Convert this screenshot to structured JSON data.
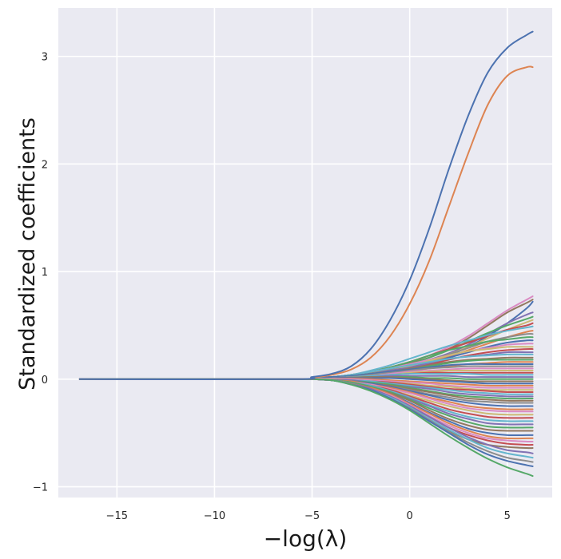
{
  "chart_data": {
    "type": "line",
    "title": "",
    "xlabel": "−log(λ)",
    "ylabel": "Standardized coefficients",
    "xlim": [
      -18,
      7.3
    ],
    "ylim": [
      -1.1,
      3.45
    ],
    "xticks": [
      -15,
      -10,
      -5,
      0,
      5
    ],
    "xtick_labels": [
      "−15",
      "−10",
      "−5",
      "0",
      "5"
    ],
    "yticks": [
      -1,
      0,
      1,
      2,
      3
    ],
    "ytick_labels": [
      "−1",
      "0",
      "1",
      "2",
      "3"
    ],
    "grid": true,
    "background": "#eaeaf2",
    "legend": "none",
    "x_range": [
      -16.9,
      6.3
    ],
    "n_series": 60,
    "x_samples": [
      -16.9,
      -6,
      -5,
      -4,
      -3,
      -2,
      -1,
      0,
      1,
      2,
      3,
      4,
      5,
      6,
      6.3
    ],
    "series": [
      {
        "color": "#4c72b0",
        "values": [
          0,
          0,
          0.02,
          0.05,
          0.12,
          0.28,
          0.55,
          0.92,
          1.4,
          1.95,
          2.45,
          2.85,
          3.08,
          3.2,
          3.23
        ]
      },
      {
        "color": "#dd8452",
        "values": [
          0,
          0,
          0.015,
          0.04,
          0.09,
          0.2,
          0.4,
          0.7,
          1.1,
          1.6,
          2.1,
          2.55,
          2.82,
          2.9,
          2.9
        ]
      },
      {
        "color": "#da8bc3",
        "values": [
          0,
          0,
          0.01,
          0.02,
          0.04,
          0.07,
          0.11,
          0.16,
          0.22,
          0.3,
          0.4,
          0.52,
          0.64,
          0.74,
          0.77
        ]
      },
      {
        "color": "#937860",
        "values": [
          0,
          0,
          0.01,
          0.02,
          0.04,
          0.07,
          0.1,
          0.15,
          0.2,
          0.28,
          0.38,
          0.5,
          0.62,
          0.71,
          0.74
        ]
      },
      {
        "color": "#4c72b0",
        "values": [
          0,
          0,
          0.01,
          0.02,
          0.03,
          0.05,
          0.08,
          0.11,
          0.16,
          0.22,
          0.3,
          0.4,
          0.52,
          0.66,
          0.72
        ]
      },
      {
        "color": "#8172b3",
        "values": [
          0,
          0,
          0.01,
          0.02,
          0.03,
          0.06,
          0.09,
          0.13,
          0.18,
          0.24,
          0.32,
          0.42,
          0.52,
          0.6,
          0.62
        ]
      },
      {
        "color": "#55a868",
        "values": [
          0,
          0,
          0.01,
          0.02,
          0.04,
          0.06,
          0.1,
          0.14,
          0.2,
          0.27,
          0.35,
          0.43,
          0.5,
          0.56,
          0.58
        ]
      },
      {
        "color": "#ccb974",
        "values": [
          0,
          0,
          0.01,
          0.015,
          0.03,
          0.05,
          0.08,
          0.12,
          0.17,
          0.23,
          0.3,
          0.38,
          0.46,
          0.53,
          0.55
        ]
      },
      {
        "color": "#c44e52",
        "values": [
          0,
          0,
          0.01,
          0.02,
          0.04,
          0.07,
          0.11,
          0.16,
          0.22,
          0.28,
          0.34,
          0.4,
          0.46,
          0.5,
          0.52
        ]
      },
      {
        "color": "#64b5cd",
        "values": [
          0,
          0,
          0.01,
          0.02,
          0.04,
          0.08,
          0.13,
          0.19,
          0.25,
          0.31,
          0.36,
          0.41,
          0.45,
          0.48,
          0.49
        ]
      },
      {
        "color": "#dd8452",
        "values": [
          0,
          0,
          0.01,
          0.015,
          0.03,
          0.05,
          0.08,
          0.12,
          0.16,
          0.21,
          0.27,
          0.33,
          0.39,
          0.44,
          0.45
        ]
      },
      {
        "color": "#8c8c8c",
        "values": [
          0,
          0,
          0.01,
          0.02,
          0.03,
          0.06,
          0.09,
          0.13,
          0.18,
          0.23,
          0.29,
          0.35,
          0.39,
          0.42,
          0.42
        ]
      },
      {
        "color": "#55a868",
        "values": [
          0,
          0,
          0.01,
          0.02,
          0.04,
          0.07,
          0.11,
          0.16,
          0.22,
          0.27,
          0.31,
          0.35,
          0.37,
          0.39,
          0.39
        ]
      },
      {
        "color": "#4c72b0",
        "values": [
          0,
          0,
          0.01,
          0.015,
          0.03,
          0.05,
          0.08,
          0.11,
          0.15,
          0.2,
          0.25,
          0.3,
          0.34,
          0.36,
          0.36
        ]
      },
      {
        "color": "#da8bc3",
        "values": [
          0,
          0,
          0.01,
          0.02,
          0.04,
          0.07,
          0.1,
          0.14,
          0.18,
          0.22,
          0.26,
          0.29,
          0.32,
          0.33,
          0.33
        ]
      },
      {
        "color": "#ccb974",
        "values": [
          0,
          0,
          0.01,
          0.02,
          0.03,
          0.05,
          0.08,
          0.12,
          0.17,
          0.22,
          0.26,
          0.28,
          0.3,
          0.3,
          0.3
        ]
      },
      {
        "color": "#c44e52",
        "values": [
          0,
          0,
          0.01,
          0.015,
          0.03,
          0.05,
          0.07,
          0.1,
          0.14,
          0.18,
          0.22,
          0.25,
          0.27,
          0.28,
          0.28
        ]
      },
      {
        "color": "#8172b3",
        "values": [
          0,
          0,
          0.01,
          0.02,
          0.03,
          0.05,
          0.08,
          0.11,
          0.15,
          0.19,
          0.21,
          0.23,
          0.25,
          0.25,
          0.25
        ]
      },
      {
        "color": "#64b5cd",
        "values": [
          0,
          0,
          0.01,
          0.02,
          0.04,
          0.07,
          0.1,
          0.13,
          0.16,
          0.19,
          0.21,
          0.22,
          0.23,
          0.23,
          0.23
        ]
      },
      {
        "color": "#937860",
        "values": [
          0,
          0,
          0.01,
          0.015,
          0.03,
          0.05,
          0.07,
          0.1,
          0.13,
          0.16,
          0.18,
          0.19,
          0.2,
          0.2,
          0.2
        ]
      },
      {
        "color": "#55a868",
        "values": [
          0,
          0,
          0.01,
          0.02,
          0.03,
          0.05,
          0.07,
          0.09,
          0.12,
          0.15,
          0.17,
          0.18,
          0.18,
          0.18,
          0.18
        ]
      },
      {
        "color": "#dd8452",
        "values": [
          0,
          0,
          0.01,
          0.015,
          0.025,
          0.04,
          0.06,
          0.08,
          0.1,
          0.12,
          0.14,
          0.15,
          0.16,
          0.16,
          0.16
        ]
      },
      {
        "color": "#4c72b0",
        "values": [
          0,
          0,
          0.01,
          0.02,
          0.03,
          0.05,
          0.07,
          0.09,
          0.11,
          0.13,
          0.14,
          0.14,
          0.14,
          0.14,
          0.14
        ]
      },
      {
        "color": "#8c8c8c",
        "values": [
          0,
          0,
          0.005,
          0.01,
          0.02,
          0.04,
          0.06,
          0.08,
          0.1,
          0.11,
          0.12,
          0.12,
          0.12,
          0.12,
          0.12
        ]
      },
      {
        "color": "#da8bc3",
        "values": [
          0,
          0,
          0.005,
          0.01,
          0.02,
          0.03,
          0.05,
          0.07,
          0.08,
          0.09,
          0.1,
          0.1,
          0.1,
          0.1,
          0.1
        ]
      },
      {
        "color": "#ccb974",
        "values": [
          0,
          0,
          0.005,
          0.01,
          0.02,
          0.03,
          0.04,
          0.06,
          0.07,
          0.08,
          0.08,
          0.08,
          0.08,
          0.08,
          0.08
        ]
      },
      {
        "color": "#c44e52",
        "values": [
          0,
          0,
          0.005,
          0.01,
          0.02,
          0.03,
          0.04,
          0.05,
          0.06,
          0.06,
          0.06,
          0.06,
          0.06,
          0.06,
          0.06
        ]
      },
      {
        "color": "#64b5cd",
        "values": [
          0,
          0,
          0.005,
          0.01,
          0.02,
          0.03,
          0.04,
          0.05,
          0.05,
          0.05,
          0.05,
          0.04,
          0.04,
          0.04,
          0.04
        ]
      },
      {
        "color": "#8172b3",
        "values": [
          0,
          0,
          0.005,
          0.01,
          0.015,
          0.02,
          0.03,
          0.03,
          0.03,
          0.03,
          0.02,
          0.02,
          0.02,
          0.02,
          0.02
        ]
      },
      {
        "color": "#55a868",
        "values": [
          0,
          0,
          0.005,
          0.01,
          0.015,
          0.02,
          0.02,
          0.02,
          0.01,
          0.01,
          0.0,
          0.0,
          0.0,
          0.0,
          0.0
        ]
      },
      {
        "color": "#937860",
        "values": [
          0,
          0,
          0.005,
          0.01,
          0.015,
          0.02,
          0.02,
          0.01,
          0.0,
          -0.01,
          -0.02,
          -0.02,
          -0.02,
          -0.02,
          -0.02
        ]
      },
      {
        "color": "#4c72b0",
        "values": [
          0,
          0,
          0.005,
          0.01,
          0.01,
          0.01,
          0.01,
          0.0,
          -0.01,
          -0.02,
          -0.03,
          -0.04,
          -0.04,
          -0.04,
          -0.04
        ]
      },
      {
        "color": "#dd8452",
        "values": [
          0,
          0,
          0.005,
          0.005,
          0.005,
          0.0,
          -0.01,
          -0.02,
          -0.03,
          -0.04,
          -0.05,
          -0.06,
          -0.06,
          -0.06,
          -0.06
        ]
      },
      {
        "color": "#da8bc3",
        "values": [
          0,
          0,
          0.005,
          0.005,
          0.0,
          -0.01,
          -0.02,
          -0.03,
          -0.04,
          -0.06,
          -0.07,
          -0.08,
          -0.08,
          -0.08,
          -0.08
        ]
      },
      {
        "color": "#ccb974",
        "values": [
          0,
          0,
          0.0,
          0.0,
          -0.01,
          -0.02,
          -0.03,
          -0.04,
          -0.06,
          -0.07,
          -0.09,
          -0.1,
          -0.1,
          -0.1,
          -0.1
        ]
      },
      {
        "color": "#c44e52",
        "values": [
          0,
          0,
          0.0,
          -0.005,
          -0.01,
          -0.02,
          -0.03,
          -0.05,
          -0.07,
          -0.09,
          -0.1,
          -0.11,
          -0.12,
          -0.12,
          -0.12
        ]
      },
      {
        "color": "#64b5cd",
        "values": [
          0,
          0,
          0.0,
          -0.005,
          -0.01,
          -0.02,
          -0.04,
          -0.06,
          -0.08,
          -0.1,
          -0.12,
          -0.13,
          -0.14,
          -0.14,
          -0.14
        ]
      },
      {
        "color": "#8172b3",
        "values": [
          0,
          0,
          0.0,
          -0.005,
          -0.01,
          -0.03,
          -0.05,
          -0.07,
          -0.09,
          -0.12,
          -0.14,
          -0.15,
          -0.16,
          -0.16,
          -0.16
        ]
      },
      {
        "color": "#55a868",
        "values": [
          0,
          0,
          0.0,
          -0.01,
          -0.02,
          -0.03,
          -0.05,
          -0.08,
          -0.11,
          -0.14,
          -0.16,
          -0.17,
          -0.18,
          -0.18,
          -0.18
        ]
      },
      {
        "color": "#937860",
        "values": [
          0,
          0,
          0.0,
          -0.01,
          -0.02,
          -0.04,
          -0.06,
          -0.09,
          -0.12,
          -0.15,
          -0.18,
          -0.19,
          -0.2,
          -0.2,
          -0.2
        ]
      },
      {
        "color": "#8c8c8c",
        "values": [
          0,
          0,
          0.0,
          -0.01,
          -0.02,
          -0.04,
          -0.07,
          -0.1,
          -0.14,
          -0.17,
          -0.2,
          -0.21,
          -0.22,
          -0.22,
          -0.22
        ]
      },
      {
        "color": "#4c72b0",
        "values": [
          0,
          0,
          0.0,
          -0.01,
          -0.02,
          -0.04,
          -0.07,
          -0.11,
          -0.15,
          -0.19,
          -0.22,
          -0.24,
          -0.25,
          -0.25,
          -0.25
        ]
      },
      {
        "color": "#dd8452",
        "values": [
          0,
          0,
          0.0,
          -0.01,
          -0.02,
          -0.05,
          -0.08,
          -0.12,
          -0.17,
          -0.21,
          -0.25,
          -0.27,
          -0.28,
          -0.28,
          -0.28
        ]
      },
      {
        "color": "#da8bc3",
        "values": [
          0,
          0,
          0.0,
          -0.01,
          -0.03,
          -0.05,
          -0.09,
          -0.13,
          -0.18,
          -0.23,
          -0.27,
          -0.29,
          -0.3,
          -0.3,
          -0.3
        ]
      },
      {
        "color": "#ccb974",
        "values": [
          0,
          0,
          0.0,
          -0.01,
          -0.03,
          -0.06,
          -0.1,
          -0.15,
          -0.2,
          -0.25,
          -0.29,
          -0.32,
          -0.33,
          -0.33,
          -0.33
        ]
      },
      {
        "color": "#c44e52",
        "values": [
          0,
          0,
          0.0,
          -0.01,
          -0.03,
          -0.06,
          -0.1,
          -0.16,
          -0.22,
          -0.28,
          -0.32,
          -0.35,
          -0.36,
          -0.36,
          -0.36
        ]
      },
      {
        "color": "#64b5cd",
        "values": [
          0,
          0,
          0.0,
          -0.01,
          -0.03,
          -0.06,
          -0.11,
          -0.17,
          -0.24,
          -0.3,
          -0.35,
          -0.38,
          -0.39,
          -0.39,
          -0.39
        ]
      },
      {
        "color": "#8172b3",
        "values": [
          0,
          0,
          0.0,
          -0.01,
          -0.03,
          -0.07,
          -0.12,
          -0.18,
          -0.25,
          -0.32,
          -0.37,
          -0.41,
          -0.42,
          -0.42,
          -0.42
        ]
      },
      {
        "color": "#55a868",
        "values": [
          0,
          0,
          0.0,
          -0.01,
          -0.03,
          -0.07,
          -0.12,
          -0.19,
          -0.27,
          -0.34,
          -0.4,
          -0.44,
          -0.45,
          -0.45,
          -0.45
        ]
      },
      {
        "color": "#937860",
        "values": [
          0,
          0,
          0.0,
          -0.01,
          -0.04,
          -0.08,
          -0.13,
          -0.2,
          -0.29,
          -0.37,
          -0.43,
          -0.47,
          -0.48,
          -0.48,
          -0.48
        ]
      },
      {
        "color": "#4c72b0",
        "values": [
          0,
          0,
          0.0,
          -0.01,
          -0.04,
          -0.08,
          -0.14,
          -0.22,
          -0.31,
          -0.39,
          -0.46,
          -0.5,
          -0.52,
          -0.52,
          -0.52
        ]
      },
      {
        "color": "#dd8452",
        "values": [
          0,
          0,
          0.0,
          -0.01,
          -0.04,
          -0.08,
          -0.14,
          -0.23,
          -0.32,
          -0.41,
          -0.48,
          -0.53,
          -0.55,
          -0.55,
          -0.55
        ]
      },
      {
        "color": "#da8bc3",
        "values": [
          0,
          0,
          0.0,
          -0.01,
          -0.04,
          -0.09,
          -0.15,
          -0.24,
          -0.34,
          -0.43,
          -0.5,
          -0.55,
          -0.57,
          -0.58,
          -0.58
        ]
      },
      {
        "color": "#c44e52",
        "values": [
          0,
          0,
          0.0,
          -0.01,
          -0.04,
          -0.09,
          -0.16,
          -0.25,
          -0.35,
          -0.45,
          -0.52,
          -0.57,
          -0.6,
          -0.61,
          -0.61
        ]
      },
      {
        "color": "#937860",
        "values": [
          0,
          0,
          0.0,
          -0.01,
          -0.04,
          -0.09,
          -0.17,
          -0.27,
          -0.38,
          -0.48,
          -0.56,
          -0.61,
          -0.63,
          -0.64,
          -0.64
        ]
      },
      {
        "color": "#8172b3",
        "values": [
          0,
          0,
          0.0,
          -0.01,
          -0.04,
          -0.09,
          -0.16,
          -0.25,
          -0.35,
          -0.45,
          -0.54,
          -0.61,
          -0.66,
          -0.68,
          -0.69
        ]
      },
      {
        "color": "#64b5cd",
        "values": [
          0,
          0,
          0.0,
          -0.01,
          -0.04,
          -0.1,
          -0.17,
          -0.26,
          -0.37,
          -0.47,
          -0.56,
          -0.64,
          -0.69,
          -0.72,
          -0.73
        ]
      },
      {
        "color": "#8c8c8c",
        "values": [
          0,
          0,
          0.0,
          -0.01,
          -0.04,
          -0.1,
          -0.18,
          -0.27,
          -0.38,
          -0.49,
          -0.59,
          -0.67,
          -0.73,
          -0.76,
          -0.77
        ]
      },
      {
        "color": "#4c72b0",
        "values": [
          0,
          0,
          0.0,
          -0.01,
          -0.05,
          -0.1,
          -0.18,
          -0.28,
          -0.39,
          -0.5,
          -0.61,
          -0.7,
          -0.76,
          -0.8,
          -0.81
        ]
      },
      {
        "color": "#55a868",
        "values": [
          0,
          0,
          0.0,
          -0.01,
          -0.05,
          -0.11,
          -0.19,
          -0.29,
          -0.41,
          -0.53,
          -0.64,
          -0.74,
          -0.82,
          -0.88,
          -0.9
        ]
      }
    ]
  }
}
